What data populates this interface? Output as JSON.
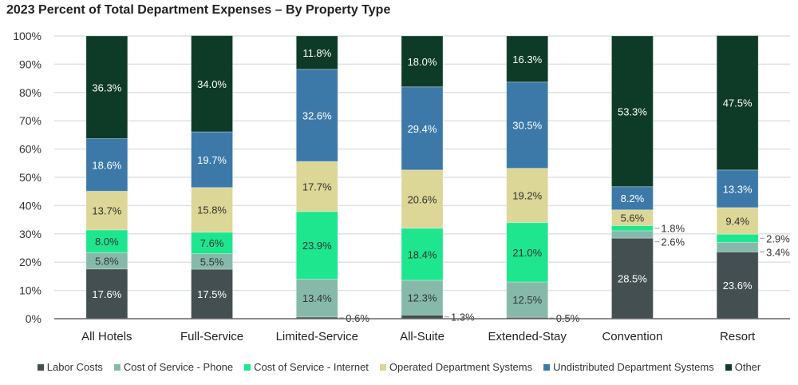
{
  "chart_data": {
    "type": "bar",
    "stacked": true,
    "title": "2023 Percent of Total Department Expenses – By Property Type",
    "categories": [
      "All Hotels",
      "Full-Service",
      "Limited-Service",
      "All-Suite",
      "Extended-Stay",
      "Convention",
      "Resort"
    ],
    "ylim": [
      0,
      100
    ],
    "yticks": [
      "0%",
      "10%",
      "20%",
      "30%",
      "40%",
      "50%",
      "60%",
      "70%",
      "80%",
      "90%",
      "100%"
    ],
    "grid": true,
    "legend_position": "bottom",
    "series": [
      {
        "name": "Labor Costs",
        "color": "#434f50",
        "values": [
          17.6,
          17.5,
          0.6,
          1.3,
          0.5,
          28.5,
          23.6
        ]
      },
      {
        "name": "Cost of Service - Phone",
        "color": "#86b9aa",
        "values": [
          5.8,
          5.5,
          13.4,
          12.3,
          12.5,
          2.6,
          3.4
        ]
      },
      {
        "name": "Cost of Service - Internet",
        "color": "#1de68e",
        "values": [
          8.0,
          7.6,
          23.9,
          18.4,
          21.0,
          1.8,
          2.9
        ]
      },
      {
        "name": "Operated Department Systems",
        "color": "#dcd697",
        "values": [
          13.7,
          15.8,
          17.7,
          20.6,
          19.2,
          5.6,
          9.4
        ]
      },
      {
        "name": "Undistributed Department Systems",
        "color": "#3c79a8",
        "values": [
          18.6,
          19.7,
          32.6,
          29.4,
          30.5,
          8.2,
          13.3
        ]
      },
      {
        "name": "Other",
        "color": "#0d3b27",
        "values": [
          36.3,
          34.0,
          11.8,
          18.0,
          16.3,
          53.3,
          47.5
        ]
      }
    ]
  }
}
